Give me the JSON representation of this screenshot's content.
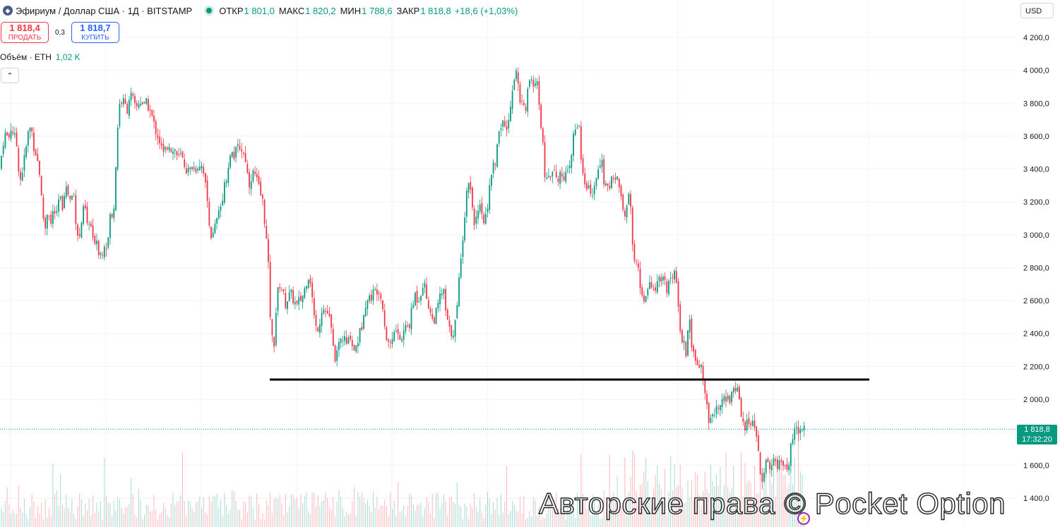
{
  "header": {
    "symbol_title": "Эфириум / Доллар США · 1Д · BITSTAMP",
    "open_label": "ОТКР",
    "open": "1 801,0",
    "high_label": "МАКС",
    "high": "1 820,2",
    "low_label": "МИН",
    "low": "1 788,6",
    "close_label": "ЗАКР",
    "close": "1 818,8",
    "change": "+18,6 (+1,03%)"
  },
  "trade": {
    "sell_price": "1 818,4",
    "sell_label": "ПРОДАТЬ",
    "spread": "0,3",
    "buy_price": "1 818,7",
    "buy_label": "КУПИТЬ"
  },
  "volume": {
    "label": "Объём · ETH",
    "value": "1,02 K"
  },
  "currency": "USD",
  "price_tag": {
    "price": "1 818,8",
    "countdown": "17:32:20"
  },
  "watermark": "Авторские права © Pocket Option",
  "icons": [
    "ethereum-icon",
    "market-status-dot",
    "collapse-chevron-icon",
    "lightning-icon"
  ],
  "colors": {
    "up": "#089981",
    "down": "#f23645",
    "support_line": "#000000"
  },
  "chart_data": {
    "type": "candlestick",
    "y_ticks": [
      "4 200,0",
      "4 000,0",
      "3 800,0",
      "3 600,0",
      "3 400,0",
      "3 200,0",
      "3 000,0",
      "2 800,0",
      "2 600,0",
      "2 400,0",
      "2 200,0",
      "2 000,0",
      "1 600,0",
      "1 400,0"
    ],
    "ylim": [
      1400,
      4200
    ],
    "support_level": 2120,
    "current_price": 1818.8,
    "close_path": [
      [
        0,
        3400
      ],
      [
        4,
        3560
      ],
      [
        8,
        3620
      ],
      [
        12,
        3580
      ],
      [
        16,
        3660
      ],
      [
        20,
        3600
      ],
      [
        24,
        3540
      ],
      [
        28,
        3320
      ],
      [
        32,
        3400
      ],
      [
        36,
        3500
      ],
      [
        40,
        3620
      ],
      [
        44,
        3660
      ],
      [
        48,
        3540
      ],
      [
        52,
        3480
      ],
      [
        56,
        3380
      ],
      [
        60,
        3140
      ],
      [
        64,
        3040
      ],
      [
        68,
        3180
      ],
      [
        72,
        3060
      ],
      [
        76,
        3160
      ],
      [
        80,
        3100
      ],
      [
        84,
        3240
      ],
      [
        88,
        3160
      ],
      [
        92,
        3300
      ],
      [
        96,
        3260
      ],
      [
        100,
        3200
      ],
      [
        104,
        3280
      ],
      [
        108,
        3060
      ],
      [
        112,
        2960
      ],
      [
        116,
        3100
      ],
      [
        120,
        3180
      ],
      [
        124,
        3040
      ],
      [
        128,
        3080
      ],
      [
        132,
        2940
      ],
      [
        136,
        3000
      ],
      [
        140,
        2900
      ],
      [
        144,
        2880
      ],
      [
        148,
        2960
      ],
      [
        152,
        2920
      ],
      [
        156,
        3120
      ],
      [
        160,
        3080
      ],
      [
        164,
        3420
      ],
      [
        168,
        3780
      ],
      [
        172,
        3820
      ],
      [
        176,
        3800
      ],
      [
        180,
        3760
      ],
      [
        184,
        3860
      ],
      [
        188,
        3820
      ],
      [
        192,
        3760
      ],
      [
        196,
        3800
      ],
      [
        200,
        3820
      ],
      [
        204,
        3780
      ],
      [
        208,
        3800
      ],
      [
        212,
        3760
      ],
      [
        216,
        3700
      ],
      [
        220,
        3640
      ],
      [
        224,
        3600
      ],
      [
        228,
        3540
      ],
      [
        232,
        3480
      ],
      [
        236,
        3540
      ],
      [
        240,
        3560
      ],
      [
        244,
        3500
      ],
      [
        248,
        3520
      ],
      [
        252,
        3460
      ],
      [
        256,
        3480
      ],
      [
        260,
        3440
      ],
      [
        264,
        3400
      ],
      [
        268,
        3380
      ],
      [
        272,
        3420
      ],
      [
        276,
        3400
      ],
      [
        280,
        3420
      ],
      [
        284,
        3440
      ],
      [
        288,
        3400
      ],
      [
        292,
        3260
      ],
      [
        296,
        3100
      ],
      [
        300,
        2960
      ],
      [
        304,
        3040
      ],
      [
        308,
        3100
      ],
      [
        312,
        3160
      ],
      [
        316,
        3260
      ],
      [
        320,
        3340
      ],
      [
        324,
        3440
      ],
      [
        328,
        3500
      ],
      [
        332,
        3480
      ],
      [
        336,
        3520
      ],
      [
        340,
        3540
      ],
      [
        344,
        3500
      ],
      [
        348,
        3460
      ],
      [
        352,
        3300
      ],
      [
        356,
        3360
      ],
      [
        360,
        3380
      ],
      [
        364,
        3320
      ],
      [
        368,
        3260
      ],
      [
        372,
        3200
      ],
      [
        376,
        3040
      ],
      [
        380,
        2800
      ],
      [
        384,
        2380
      ],
      [
        388,
        2340
      ],
      [
        392,
        2620
      ],
      [
        396,
        2700
      ],
      [
        400,
        2660
      ],
      [
        404,
        2580
      ],
      [
        408,
        2620
      ],
      [
        412,
        2640
      ],
      [
        416,
        2600
      ],
      [
        420,
        2560
      ],
      [
        424,
        2600
      ],
      [
        428,
        2620
      ],
      [
        432,
        2680
      ],
      [
        436,
        2760
      ],
      [
        440,
        2720
      ],
      [
        444,
        2520
      ],
      [
        448,
        2420
      ],
      [
        452,
        2460
      ],
      [
        456,
        2560
      ],
      [
        460,
        2540
      ],
      [
        464,
        2520
      ],
      [
        468,
        2460
      ],
      [
        472,
        2300
      ],
      [
        476,
        2240
      ],
      [
        480,
        2320
      ],
      [
        484,
        2380
      ],
      [
        488,
        2360
      ],
      [
        492,
        2320
      ],
      [
        496,
        2400
      ],
      [
        500,
        2300
      ],
      [
        504,
        2320
      ],
      [
        508,
        2380
      ],
      [
        512,
        2440
      ],
      [
        516,
        2580
      ],
      [
        520,
        2600
      ],
      [
        524,
        2620
      ],
      [
        528,
        2640
      ],
      [
        532,
        2660
      ],
      [
        536,
        2680
      ],
      [
        540,
        2640
      ],
      [
        544,
        2480
      ],
      [
        548,
        2360
      ],
      [
        552,
        2340
      ],
      [
        556,
        2380
      ],
      [
        560,
        2420
      ],
      [
        564,
        2400
      ],
      [
        568,
        2340
      ],
      [
        572,
        2420
      ],
      [
        576,
        2440
      ],
      [
        580,
        2460
      ],
      [
        584,
        2560
      ],
      [
        588,
        2640
      ],
      [
        592,
        2600
      ],
      [
        596,
        2660
      ],
      [
        600,
        2720
      ],
      [
        604,
        2620
      ],
      [
        608,
        2560
      ],
      [
        612,
        2480
      ],
      [
        616,
        2500
      ],
      [
        620,
        2560
      ],
      [
        624,
        2640
      ],
      [
        628,
        2660
      ],
      [
        632,
        2500
      ],
      [
        636,
        2420
      ],
      [
        640,
        2400
      ],
      [
        644,
        2440
      ],
      [
        648,
        2580
      ],
      [
        652,
        2860
      ],
      [
        656,
        3020
      ],
      [
        660,
        3220
      ],
      [
        664,
        3360
      ],
      [
        668,
        3200
      ],
      [
        672,
        3080
      ],
      [
        676,
        3100
      ],
      [
        680,
        3160
      ],
      [
        684,
        3060
      ],
      [
        688,
        3120
      ],
      [
        692,
        3240
      ],
      [
        696,
        3380
      ],
      [
        700,
        3420
      ],
      [
        704,
        3520
      ],
      [
        708,
        3640
      ],
      [
        712,
        3700
      ],
      [
        716,
        3620
      ],
      [
        720,
        3680
      ],
      [
        724,
        3860
      ],
      [
        728,
        3960
      ],
      [
        732,
        4000
      ],
      [
        736,
        3780
      ],
      [
        740,
        3860
      ],
      [
        744,
        3760
      ],
      [
        748,
        3920
      ],
      [
        752,
        3960
      ],
      [
        756,
        3860
      ],
      [
        760,
        3940
      ],
      [
        764,
        3800
      ],
      [
        768,
        3580
      ],
      [
        772,
        3340
      ],
      [
        776,
        3400
      ],
      [
        780,
        3360
      ],
      [
        784,
        3440
      ],
      [
        788,
        3360
      ],
      [
        792,
        3340
      ],
      [
        796,
        3380
      ],
      [
        800,
        3360
      ],
      [
        804,
        3360
      ],
      [
        808,
        3420
      ],
      [
        812,
        3600
      ],
      [
        816,
        3660
      ],
      [
        820,
        3680
      ],
      [
        824,
        3400
      ],
      [
        828,
        3300
      ],
      [
        832,
        3260
      ],
      [
        836,
        3280
      ],
      [
        840,
        3240
      ],
      [
        844,
        3300
      ],
      [
        848,
        3460
      ],
      [
        852,
        3440
      ],
      [
        856,
        3300
      ],
      [
        860,
        3260
      ],
      [
        864,
        3320
      ],
      [
        868,
        3380
      ],
      [
        872,
        3340
      ],
      [
        876,
        3340
      ],
      [
        880,
        3200
      ],
      [
        884,
        3100
      ],
      [
        888,
        3160
      ],
      [
        892,
        3260
      ],
      [
        896,
        2900
      ],
      [
        900,
        2840
      ],
      [
        904,
        2760
      ],
      [
        908,
        2660
      ],
      [
        912,
        2620
      ],
      [
        916,
        2620
      ],
      [
        920,
        2700
      ],
      [
        924,
        2680
      ],
      [
        928,
        2660
      ],
      [
        932,
        2720
      ],
      [
        936,
        2700
      ],
      [
        940,
        2720
      ],
      [
        944,
        2660
      ],
      [
        948,
        2700
      ],
      [
        952,
        2760
      ],
      [
        956,
        2780
      ],
      [
        960,
        2580
      ],
      [
        964,
        2400
      ],
      [
        968,
        2340
      ],
      [
        972,
        2260
      ],
      [
        976,
        2520
      ],
      [
        980,
        2280
      ],
      [
        984,
        2240
      ],
      [
        988,
        2200
      ],
      [
        992,
        2220
      ],
      [
        996,
        2120
      ],
      [
        1000,
        1960
      ],
      [
        1004,
        1880
      ],
      [
        1008,
        1940
      ],
      [
        1012,
        1900
      ],
      [
        1016,
        1960
      ],
      [
        1020,
        1980
      ],
      [
        1024,
        2060
      ],
      [
        1028,
        2020
      ],
      [
        1032,
        1980
      ],
      [
        1036,
        2040
      ],
      [
        1040,
        2080
      ],
      [
        1044,
        2060
      ],
      [
        1048,
        1960
      ],
      [
        1052,
        1860
      ],
      [
        1056,
        1840
      ],
      [
        1060,
        1860
      ],
      [
        1064,
        1860
      ],
      [
        1068,
        1820
      ],
      [
        1072,
        1780
      ],
      [
        1076,
        1560
      ],
      [
        1080,
        1520
      ],
      [
        1084,
        1640
      ],
      [
        1088,
        1620
      ],
      [
        1092,
        1600
      ],
      [
        1096,
        1620
      ],
      [
        1100,
        1600
      ],
      [
        1104,
        1600
      ],
      [
        1108,
        1620
      ],
      [
        1112,
        1580
      ],
      [
        1116,
        1560
      ],
      [
        1120,
        1760
      ],
      [
        1124,
        1800
      ],
      [
        1128,
        1800
      ],
      [
        1132,
        1820
      ],
      [
        1136,
        1810
      ],
      [
        1140,
        1818.8
      ]
    ]
  }
}
